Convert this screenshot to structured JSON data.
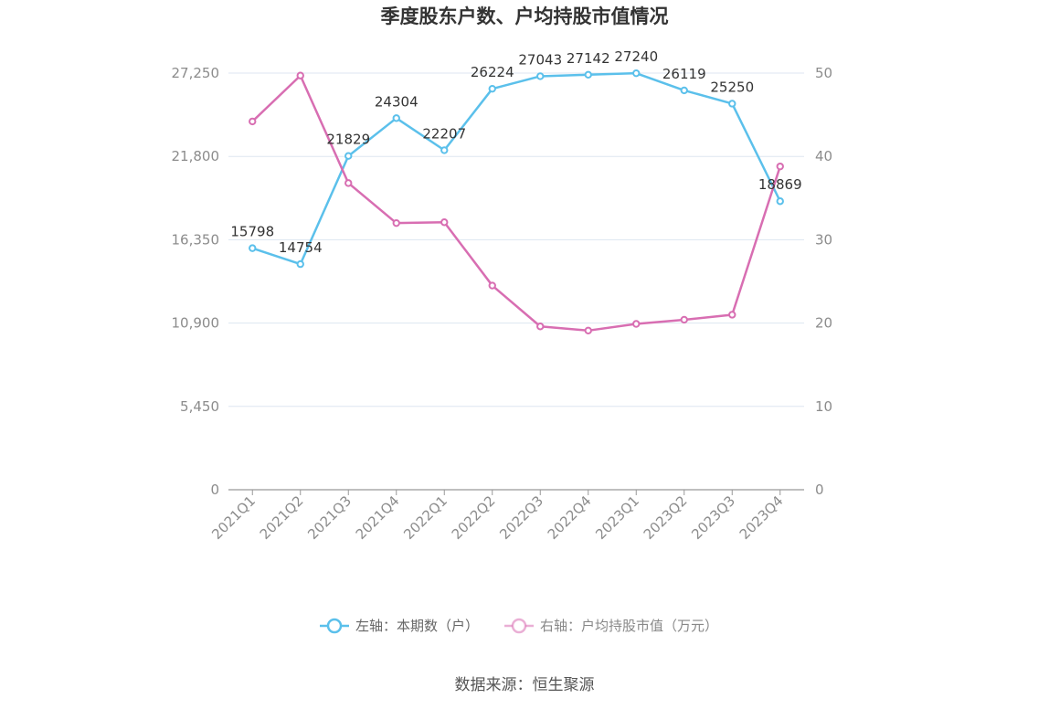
{
  "chart_data": {
    "type": "line",
    "title": "季度股东户数、户均持股市值情况",
    "categories": [
      "2021Q1",
      "2021Q2",
      "2021Q3",
      "2021Q4",
      "2022Q1",
      "2022Q2",
      "2022Q3",
      "2022Q4",
      "2023Q1",
      "2023Q2",
      "2023Q3",
      "2023Q4"
    ],
    "left_axis": {
      "ticks": [
        "0",
        "5,450",
        "10,900",
        "16,350",
        "21,800",
        "27,250"
      ],
      "ylim": [
        0,
        27250
      ]
    },
    "right_axis": {
      "ticks": [
        "0",
        "10",
        "20",
        "30",
        "40",
        "50"
      ],
      "ylim": [
        0,
        50
      ]
    },
    "series": [
      {
        "name": "左轴：本期数（户）",
        "axis": "left",
        "color": "#5bc0eb",
        "values": [
          15798,
          14754,
          21829,
          24304,
          22207,
          26224,
          27043,
          27142,
          27240,
          26119,
          25250,
          18869
        ],
        "labels": [
          "15798",
          "14754",
          "21829",
          "24304",
          "22207",
          "26224",
          "27043",
          "27142",
          "27240",
          "26119",
          "25250",
          "18869"
        ]
      },
      {
        "name": "右轴：户均持股市值（万元）",
        "axis": "right",
        "color": "#d86eb2",
        "values": [
          44.2,
          49.7,
          36.8,
          32.0,
          32.1,
          24.5,
          19.6,
          19.1,
          19.9,
          20.4,
          21.0,
          38.8
        ]
      }
    ],
    "grid": true,
    "legend_position": "bottom"
  },
  "footer": {
    "source": "数据来源：恒生聚源"
  }
}
